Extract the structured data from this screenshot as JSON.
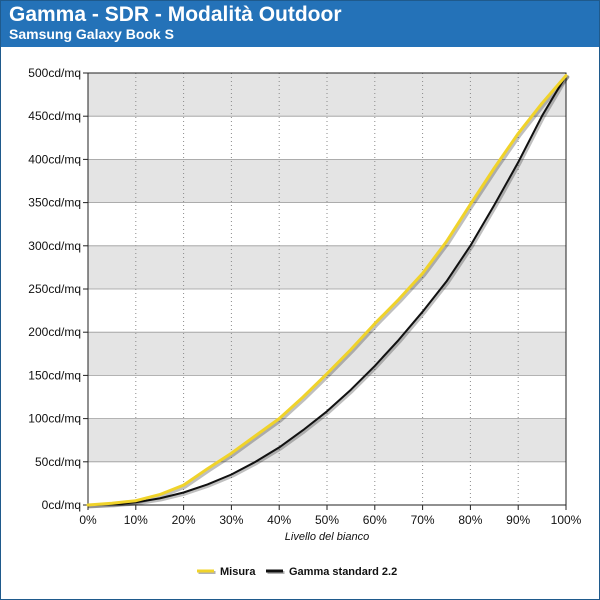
{
  "header": {
    "title": "Gamma - SDR - Modalità Outdoor",
    "subtitle": "Samsung Galaxy Book S"
  },
  "colors": {
    "header_bg": "#2472b8",
    "band_fill": "#e4e4e4",
    "misura_line": "#f0d32a",
    "gamma_line": "#111111"
  },
  "chart_data": {
    "type": "line",
    "title": "Gamma - SDR - Modalità Outdoor",
    "subtitle": "Samsung Galaxy Book S",
    "xlabel": "Livello del bianco",
    "ylabel": "",
    "xlim": [
      0,
      100
    ],
    "ylim": [
      0,
      500
    ],
    "x_ticks": [
      "0%",
      "10%",
      "20%",
      "30%",
      "40%",
      "50%",
      "60%",
      "70%",
      "80%",
      "90%",
      "100%"
    ],
    "y_ticks": [
      "0cd/mq",
      "50cd/mq",
      "100cd/mq",
      "150cd/mq",
      "200cd/mq",
      "250cd/mq",
      "300cd/mq",
      "350cd/mq",
      "400cd/mq",
      "450cd/mq",
      "500cd/mq"
    ],
    "grid": true,
    "legend_position": "bottom-center",
    "x": [
      0,
      5,
      10,
      15,
      20,
      25,
      30,
      35,
      40,
      45,
      50,
      55,
      60,
      65,
      70,
      75,
      80,
      85,
      90,
      95,
      100
    ],
    "series": [
      {
        "name": "Misura",
        "color": "#f0d32a",
        "values": [
          0,
          2,
          5,
          12,
          23,
          42,
          60,
          80,
          100,
          125,
          152,
          180,
          210,
          238,
          268,
          305,
          348,
          390,
          430,
          465,
          497
        ]
      },
      {
        "name": "Gamma standard 2.2",
        "color": "#111111",
        "values": [
          0,
          0.7,
          3.1,
          7.6,
          14.5,
          23.8,
          35.3,
          49.9,
          66.7,
          86.7,
          108.5,
          133.4,
          161.0,
          191.1,
          223.7,
          258.8,
          300.1,
          347.2,
          396.6,
          450.5,
          497
        ]
      }
    ]
  }
}
